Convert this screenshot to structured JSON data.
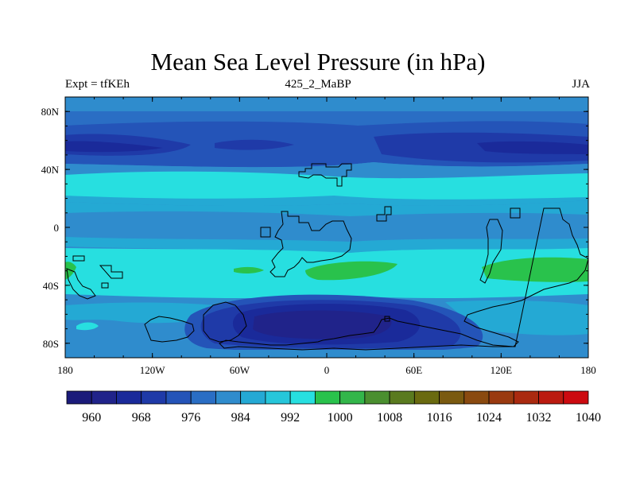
{
  "title": "Mean Sea Level Pressure (in hPa)",
  "left_label": "Expt = tfKEh",
  "center_label": "425_2_MaBP",
  "right_label": "JJA",
  "map": {
    "lon_range": [
      -180,
      180
    ],
    "lat_range": [
      -90,
      90
    ],
    "x_ticks": [
      {
        "value": -180,
        "label": "180"
      },
      {
        "value": -120,
        "label": "120W"
      },
      {
        "value": -60,
        "label": "60W"
      },
      {
        "value": 0,
        "label": "0"
      },
      {
        "value": 60,
        "label": "60E"
      },
      {
        "value": 120,
        "label": "120E"
      },
      {
        "value": 180,
        "label": "180"
      }
    ],
    "y_ticks": [
      {
        "value": 80,
        "label": "80N"
      },
      {
        "value": 40,
        "label": "40N"
      },
      {
        "value": 0,
        "label": "0"
      },
      {
        "value": -40,
        "label": "40S"
      },
      {
        "value": -80,
        "label": "80S"
      }
    ]
  },
  "colorbar": {
    "colors": [
      "#1b1b7a",
      "#20238a",
      "#1a2a9a",
      "#1f3aa8",
      "#2454b8",
      "#2a6ec4",
      "#2f8ccd",
      "#24a9d4",
      "#26c6da",
      "#27dfe0",
      "#29c24c",
      "#33b64a",
      "#4a8f2f",
      "#5a7a1f",
      "#6a6a10",
      "#7a5a10",
      "#8a4a10",
      "#9a3a10",
      "#aa2a10",
      "#bb1a10",
      "#cc0a10"
    ],
    "labels": [
      "960",
      "968",
      "976",
      "984",
      "992",
      "1000",
      "1008",
      "1016",
      "1024",
      "1032",
      "1040"
    ]
  }
}
